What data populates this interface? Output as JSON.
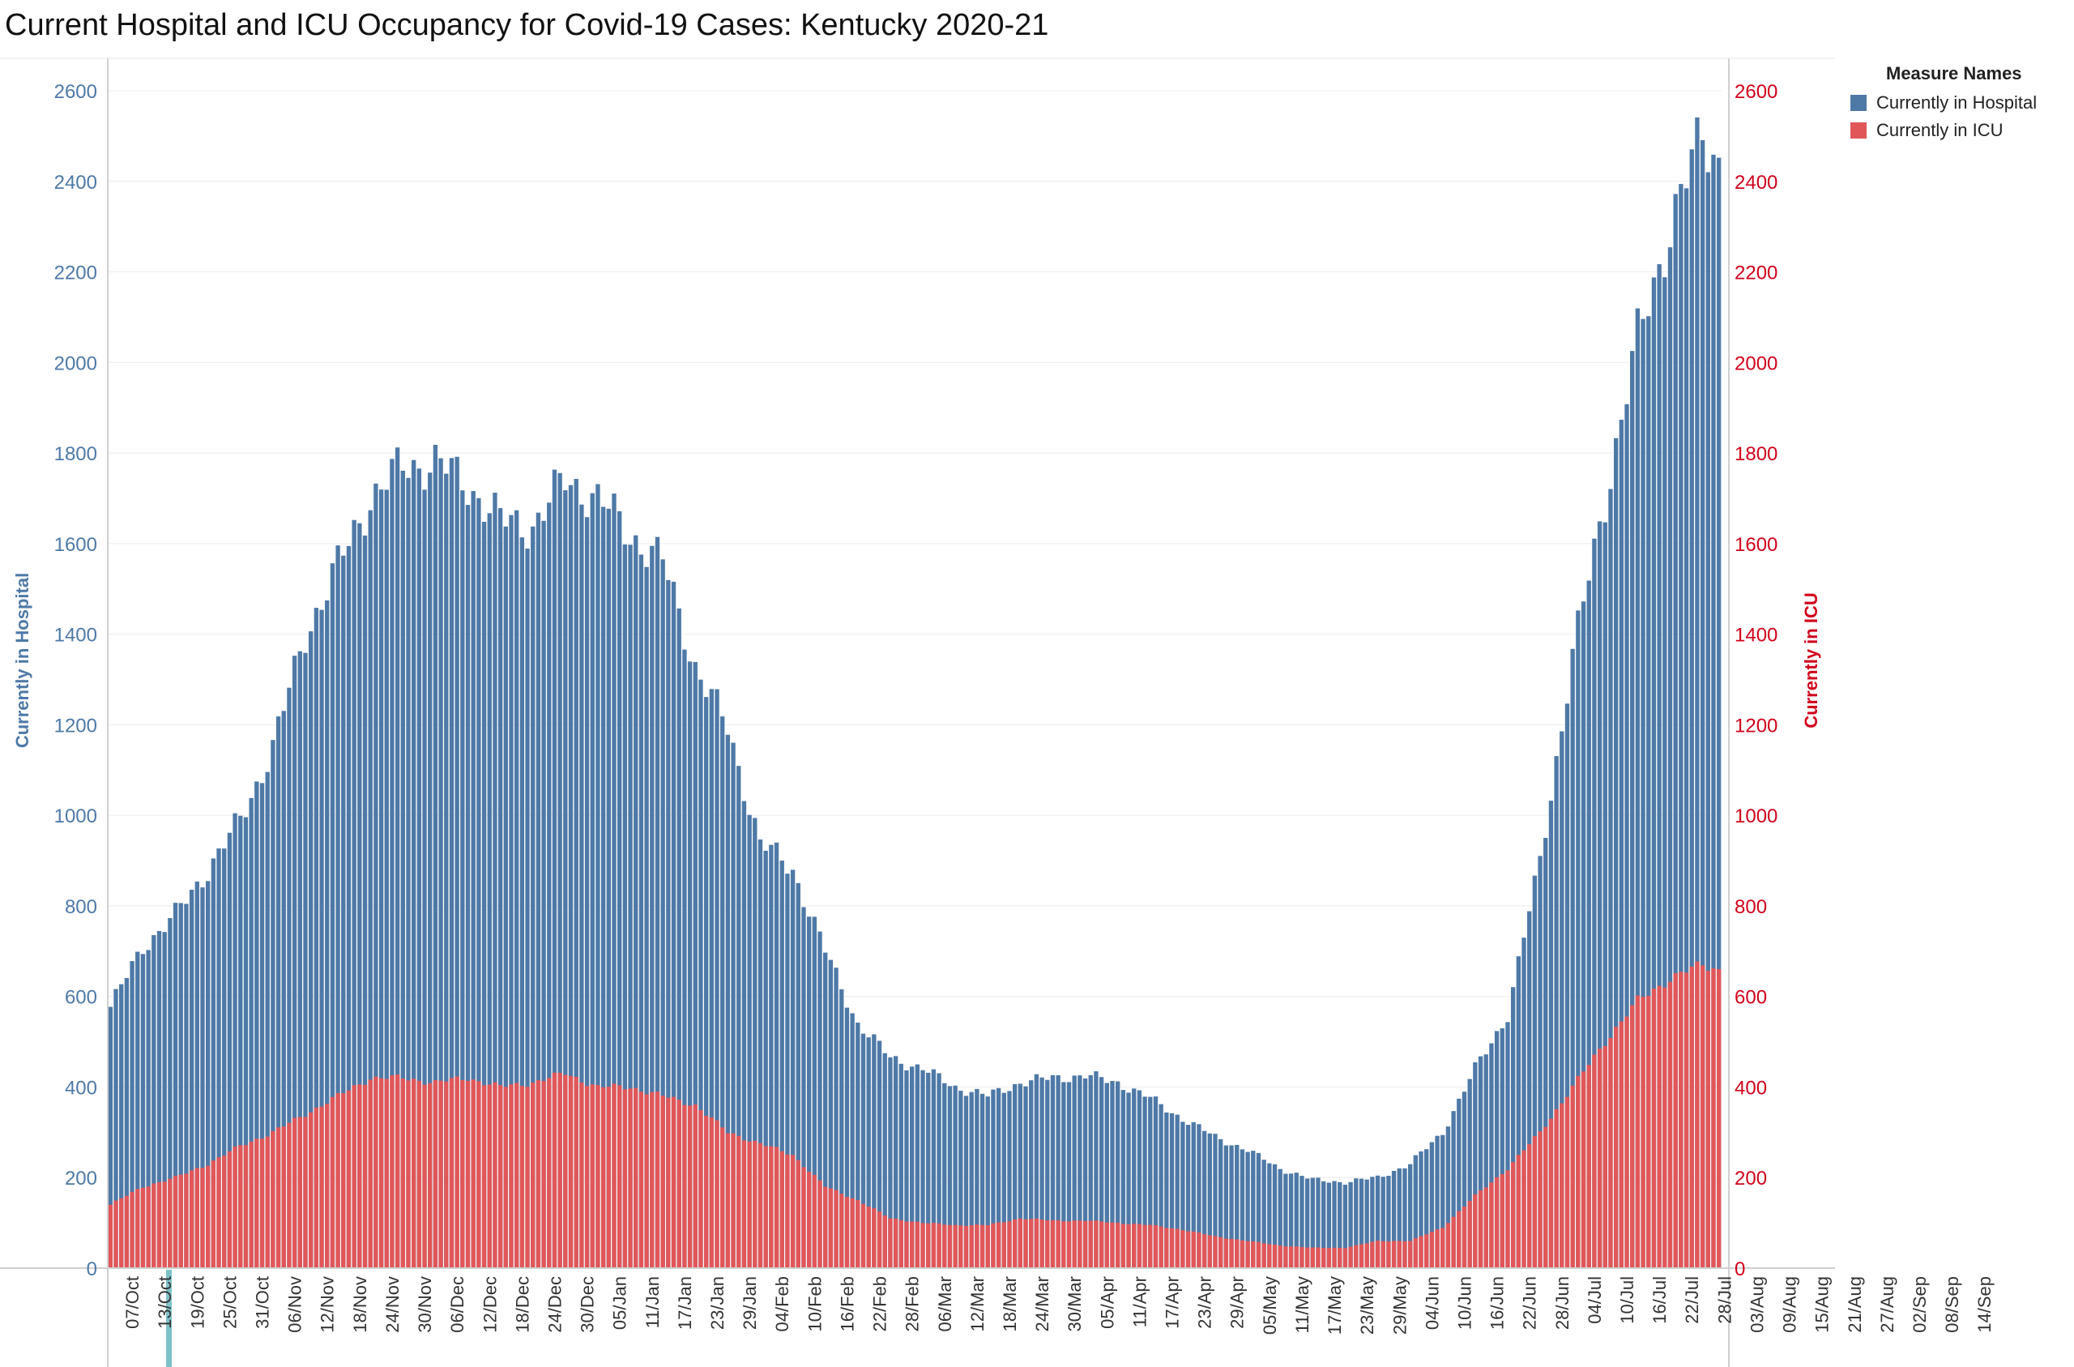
{
  "title": "Current Hospital and ICU Occupancy for Covid-19 Cases:  Kentucky 2020-21",
  "legend": {
    "title": "Measure Names",
    "items": [
      {
        "label": "Currently in Hospital",
        "color": "#4e79a7"
      },
      {
        "label": "Currently in ICU",
        "color": "#e15759"
      }
    ]
  },
  "chart_data": {
    "type": "bar",
    "title": "Current Hospital and ICU Occupancy for Covid-19 Cases:  Kentucky 2020-21",
    "ylabel_left": "Currently in Hospital",
    "ylabel_right": "Currently in ICU",
    "ylim": [
      0,
      2600
    ],
    "yticks": [
      0,
      200,
      400,
      600,
      800,
      1000,
      1200,
      1400,
      1600,
      1800,
      2000,
      2200,
      2400,
      2600
    ],
    "grid": true,
    "legend_position": "top-right",
    "x_tick_labels": [
      "07/Oct",
      "13/Oct",
      "19/Oct",
      "25/Oct",
      "31/Oct",
      "06/Nov",
      "12/Nov",
      "18/Nov",
      "24/Nov",
      "30/Nov",
      "06/Dec",
      "12/Dec",
      "18/Dec",
      "24/Dec",
      "30/Dec",
      "05/Jan",
      "11/Jan",
      "17/Jan",
      "23/Jan",
      "29/Jan",
      "04/Feb",
      "10/Feb",
      "16/Feb",
      "22/Feb",
      "28/Feb",
      "06/Mar",
      "12/Mar",
      "18/Mar",
      "24/Mar",
      "30/Mar",
      "05/Apr",
      "11/Apr",
      "17/Apr",
      "23/Apr",
      "29/Apr",
      "05/May",
      "11/May",
      "17/May",
      "23/May",
      "29/May",
      "04/Jun",
      "10/Jun",
      "16/Jun",
      "22/Jun",
      "28/Jun",
      "04/Jul",
      "10/Jul",
      "16/Jul",
      "22/Jul",
      "28/Jul",
      "03/Aug",
      "09/Aug",
      "15/Aug",
      "21/Aug",
      "27/Aug",
      "02/Sep",
      "08/Sep",
      "14/Sep"
    ],
    "tick_every_days": 6,
    "series": [
      {
        "name": "Currently in Hospital",
        "color": "#4e79a7",
        "anchors": [
          [
            0,
            577
          ],
          [
            6,
            710
          ],
          [
            12,
            780
          ],
          [
            18,
            880
          ],
          [
            24,
            990
          ],
          [
            30,
            1150
          ],
          [
            36,
            1400
          ],
          [
            42,
            1550
          ],
          [
            48,
            1700
          ],
          [
            54,
            1770
          ],
          [
            60,
            1780
          ],
          [
            66,
            1730
          ],
          [
            72,
            1650
          ],
          [
            78,
            1640
          ],
          [
            84,
            1740
          ],
          [
            90,
            1700
          ],
          [
            96,
            1620
          ],
          [
            102,
            1560
          ],
          [
            108,
            1330
          ],
          [
            114,
            1190
          ],
          [
            120,
            940
          ],
          [
            126,
            880
          ],
          [
            132,
            700
          ],
          [
            138,
            540
          ],
          [
            144,
            465
          ],
          [
            150,
            440
          ],
          [
            156,
            400
          ],
          [
            162,
            380
          ],
          [
            168,
            410
          ],
          [
            174,
            420
          ],
          [
            180,
            425
          ],
          [
            186,
            410
          ],
          [
            192,
            375
          ],
          [
            198,
            330
          ],
          [
            204,
            290
          ],
          [
            210,
            260
          ],
          [
            216,
            220
          ],
          [
            222,
            195
          ],
          [
            228,
            190
          ],
          [
            234,
            200
          ],
          [
            240,
            230
          ],
          [
            246,
            300
          ],
          [
            252,
            440
          ],
          [
            258,
            560
          ],
          [
            264,
            900
          ],
          [
            270,
            1350
          ],
          [
            276,
            1700
          ],
          [
            282,
            2050
          ],
          [
            288,
            2300
          ],
          [
            294,
            2500
          ],
          [
            297,
            2450
          ]
        ]
      },
      {
        "name": "Currently in ICU",
        "color": "#e15759",
        "anchors": [
          [
            0,
            140
          ],
          [
            6,
            180
          ],
          [
            12,
            200
          ],
          [
            18,
            230
          ],
          [
            24,
            270
          ],
          [
            30,
            300
          ],
          [
            36,
            340
          ],
          [
            42,
            380
          ],
          [
            48,
            420
          ],
          [
            54,
            420
          ],
          [
            60,
            410
          ],
          [
            66,
            420
          ],
          [
            72,
            400
          ],
          [
            78,
            410
          ],
          [
            84,
            430
          ],
          [
            90,
            400
          ],
          [
            96,
            400
          ],
          [
            102,
            380
          ],
          [
            108,
            360
          ],
          [
            114,
            300
          ],
          [
            120,
            275
          ],
          [
            126,
            250
          ],
          [
            132,
            180
          ],
          [
            138,
            150
          ],
          [
            144,
            110
          ],
          [
            150,
            100
          ],
          [
            156,
            95
          ],
          [
            162,
            95
          ],
          [
            168,
            110
          ],
          [
            174,
            105
          ],
          [
            180,
            105
          ],
          [
            186,
            100
          ],
          [
            192,
            95
          ],
          [
            198,
            85
          ],
          [
            204,
            70
          ],
          [
            210,
            60
          ],
          [
            216,
            50
          ],
          [
            222,
            45
          ],
          [
            228,
            45
          ],
          [
            234,
            60
          ],
          [
            240,
            60
          ],
          [
            246,
            90
          ],
          [
            252,
            160
          ],
          [
            258,
            220
          ],
          [
            264,
            300
          ],
          [
            270,
            400
          ],
          [
            276,
            500
          ],
          [
            282,
            590
          ],
          [
            288,
            640
          ],
          [
            294,
            670
          ],
          [
            297,
            660
          ]
        ]
      }
    ]
  }
}
